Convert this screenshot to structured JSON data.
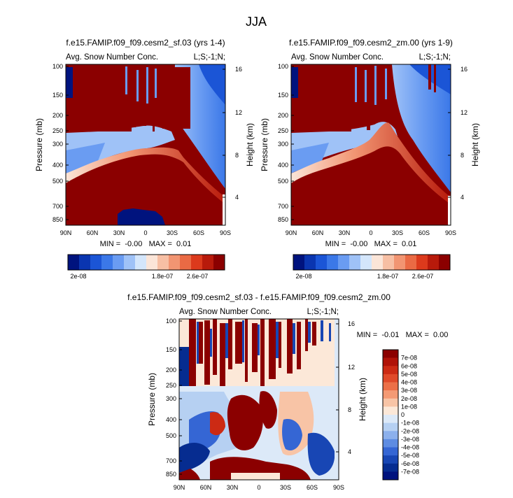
{
  "figure": {
    "title": "JJA"
  },
  "chart_data": [
    {
      "type": "heatmap",
      "title": "f.e15.FAMIP.f09_f09.cesm2_sf.03 (yrs 1-4)",
      "left_label": "Avg. Snow Number Conc.",
      "right_label": "L;S;-1;N;",
      "xlabel": "",
      "ylabel": "Pressure (mb)",
      "y2label": "Height (km)",
      "x_ticks": [
        "90N",
        "60N",
        "30N",
        "0",
        "30S",
        "60S",
        "90S"
      ],
      "y_ticks": [
        "100",
        "150",
        "200",
        "250",
        "300",
        "400",
        "500",
        "700",
        "850"
      ],
      "y2_ticks": [
        "16",
        "12",
        "8",
        "4"
      ],
      "stats": "MIN =  -0.00   MAX =  0.01",
      "colorbar_labels": [
        "2e-08",
        "1.8e-07",
        "2.6e-07"
      ],
      "colorbar_colors": [
        "#00137e",
        "#0a35b0",
        "#1b55d6",
        "#3b78e8",
        "#6a9cf2",
        "#9fc2f7",
        "#d4e6fb",
        "#fbe5d8",
        "#f7bfa4",
        "#f29572",
        "#ea6a44",
        "#dc3a1c",
        "#b81a0b",
        "#8b0000"
      ]
    },
    {
      "type": "heatmap",
      "title": "f.e15.FAMIP.f09_f09.cesm2_zm.00 (yrs 1-9)",
      "left_label": "Avg. Snow Number Conc.",
      "right_label": "L;S;-1;N;",
      "xlabel": "",
      "ylabel": "Pressure (mb)",
      "y2label": "Height (km)",
      "x_ticks": [
        "90N",
        "60N",
        "30N",
        "0",
        "30S",
        "60S",
        "90S"
      ],
      "y_ticks": [
        "100",
        "150",
        "200",
        "250",
        "300",
        "400",
        "500",
        "700",
        "850"
      ],
      "y2_ticks": [
        "16",
        "12",
        "8",
        "4"
      ],
      "stats": "MIN =  -0.00   MAX =  0.01",
      "colorbar_labels": [
        "2e-08",
        "1.8e-07",
        "2.6e-07"
      ],
      "colorbar_colors": [
        "#00137e",
        "#0a35b0",
        "#1b55d6",
        "#3b78e8",
        "#6a9cf2",
        "#9fc2f7",
        "#d4e6fb",
        "#fbe5d8",
        "#f7bfa4",
        "#f29572",
        "#ea6a44",
        "#dc3a1c",
        "#b81a0b",
        "#8b0000"
      ]
    },
    {
      "type": "heatmap",
      "title": "f.e15.FAMIP.f09_f09.cesm2_sf.03 - f.e15.FAMIP.f09_f09.cesm2_zm.00",
      "left_label": "Avg. Snow Number Conc.",
      "right_label": "L;S;-1;N;",
      "xlabel": "",
      "ylabel": "Pressure (mb)",
      "y2label": "Height (km)",
      "x_ticks": [
        "90N",
        "60N",
        "30N",
        "0",
        "30S",
        "60S",
        "90S"
      ],
      "y_ticks": [
        "100",
        "150",
        "200",
        "250",
        "300",
        "400",
        "500",
        "700",
        "850"
      ],
      "y2_ticks": [
        "16",
        "12",
        "8",
        "4"
      ],
      "stats": "MIN =  -0.01   MAX =  0.00",
      "colorbar_labels": [
        "7e-08",
        "6e-08",
        "5e-08",
        "4e-08",
        "3e-08",
        "2e-08",
        "1e-08",
        "0",
        "-1e-08",
        "-2e-08",
        "-3e-08",
        "-4e-08",
        "-5e-08",
        "-6e-08",
        "-7e-08"
      ],
      "colorbar_colors": [
        "#8b0000",
        "#b01208",
        "#cc2a14",
        "#e04a2a",
        "#ec7048",
        "#f49a74",
        "#f8c4a6",
        "#fce8d8",
        "#dce9f8",
        "#b6d0f2",
        "#8cb0ec",
        "#5e8ce2",
        "#3566d4",
        "#1846b4",
        "#062c90",
        "#00137e"
      ]
    }
  ]
}
